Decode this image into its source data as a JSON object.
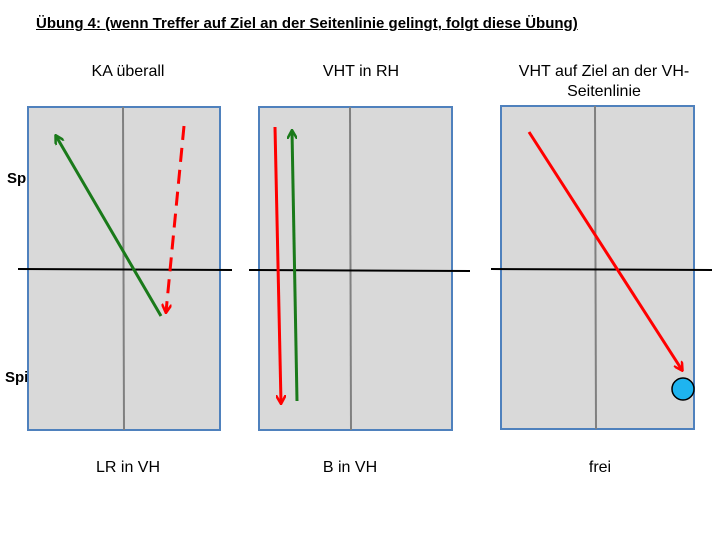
{
  "title": "Übung 4: (wenn Treffer auf Ziel an der Seitenlinie gelingt, folgt diese Übung)",
  "players": {
    "a": "Spieler A",
    "b": "Spieler B"
  },
  "panels": [
    {
      "heading": "KA überall",
      "footer": "LR in VH"
    },
    {
      "heading": "VHT in RH",
      "footer": "B in VH"
    },
    {
      "heading": "VHT auf Ziel an der VH-\nSeitenlinie",
      "footer": "frei"
    }
  ],
  "colors": {
    "table_fill": "#d9d9d9",
    "table_border": "#4f81bd",
    "center_line": "#808080",
    "net": "#000000",
    "arrow_green": "#1a7a1a",
    "arrow_red": "#ff0000",
    "target": "#1eb4f0"
  }
}
